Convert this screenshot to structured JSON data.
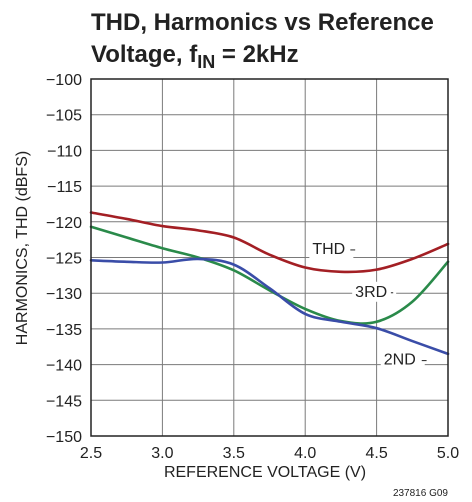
{
  "chart_data": {
    "type": "line",
    "title_line1": "THD, Harmonics vs Reference",
    "title_line2_prefix": "Voltage, f",
    "title_line2_sub": "IN",
    "title_line2_suffix": " = 2kHz",
    "xlabel": "REFERENCE VOLTAGE (V)",
    "ylabel": "HARMONICS, THD (dBFS)",
    "xlim": [
      2.5,
      5.0
    ],
    "ylim": [
      -150,
      -100
    ],
    "xticks": [
      2.5,
      3.0,
      3.5,
      4.0,
      4.5,
      5.0
    ],
    "xtick_labels": [
      "2.5",
      "3.0",
      "3.5",
      "4.0",
      "4.5",
      "5.0"
    ],
    "yticks": [
      -100,
      -105,
      -110,
      -115,
      -120,
      -125,
      -130,
      -135,
      -140,
      -145,
      -150
    ],
    "ytick_labels": [
      "−100",
      "−105",
      "−110",
      "−115",
      "−120",
      "−125",
      "−130",
      "−135",
      "−140",
      "−145",
      "−150"
    ],
    "grid": true,
    "figure_code": "237816 G09",
    "series": [
      {
        "name": "THD",
        "color": "#a31f24",
        "x": [
          2.5,
          2.75,
          3.0,
          3.25,
          3.5,
          3.75,
          4.0,
          4.25,
          4.5,
          4.75,
          5.0
        ],
        "y": [
          -118.7,
          -119.6,
          -120.6,
          -121.2,
          -122.2,
          -124.6,
          -126.4,
          -127.0,
          -126.7,
          -125.2,
          -123.1
        ]
      },
      {
        "name": "3RD",
        "color": "#2a8a4a",
        "x": [
          2.5,
          2.75,
          3.0,
          3.25,
          3.5,
          3.75,
          4.0,
          4.25,
          4.5,
          4.75,
          5.0
        ],
        "y": [
          -120.7,
          -122.2,
          -123.7,
          -125.0,
          -126.8,
          -129.6,
          -132.2,
          -133.9,
          -134.0,
          -131.2,
          -125.6
        ]
      },
      {
        "name": "2ND",
        "color": "#3a4da8",
        "x": [
          2.5,
          2.75,
          3.0,
          3.25,
          3.5,
          3.75,
          4.0,
          4.25,
          4.5,
          4.75,
          5.0
        ],
        "y": [
          -125.4,
          -125.6,
          -125.7,
          -125.2,
          -126.0,
          -129.3,
          -132.9,
          -134.0,
          -134.9,
          -136.7,
          -138.5
        ]
      }
    ],
    "labels": [
      {
        "text": "THD",
        "x": 4.05,
        "y": -124.5,
        "leader_to": 4.35
      },
      {
        "text": "3RD",
        "x": 4.35,
        "y": -130.5,
        "leader_to": 4.6
      },
      {
        "text": "2ND",
        "x": 4.55,
        "y": -140.0,
        "leader_to": 4.85
      }
    ]
  }
}
